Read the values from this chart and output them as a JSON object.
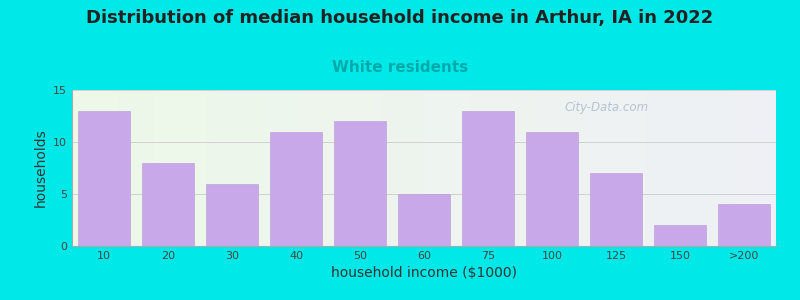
{
  "title": "Distribution of median household income in Arthur, IA in 2022",
  "subtitle": "White residents",
  "xlabel": "household income ($1000)",
  "ylabel": "households",
  "categories": [
    "10",
    "20",
    "30",
    "40",
    "50",
    "60",
    "75",
    "100",
    "125",
    "150",
    ">200"
  ],
  "values": [
    13,
    8,
    6,
    11,
    12,
    5,
    13,
    11,
    7,
    2,
    4
  ],
  "bar_color": "#c8a8e8",
  "bar_edge_color": "#b898d8",
  "background_outer": "#00e8e8",
  "background_plot_left": "#edf8e8",
  "background_plot_right": "#eef0f5",
  "ylim": [
    0,
    15
  ],
  "yticks": [
    0,
    5,
    10,
    15
  ],
  "title_fontsize": 13,
  "subtitle_fontsize": 11,
  "subtitle_color": "#00aaaa",
  "axis_label_fontsize": 10,
  "tick_fontsize": 8,
  "watermark_text": "City-Data.com",
  "watermark_color": "#aabbd0",
  "title_color": "#222222"
}
